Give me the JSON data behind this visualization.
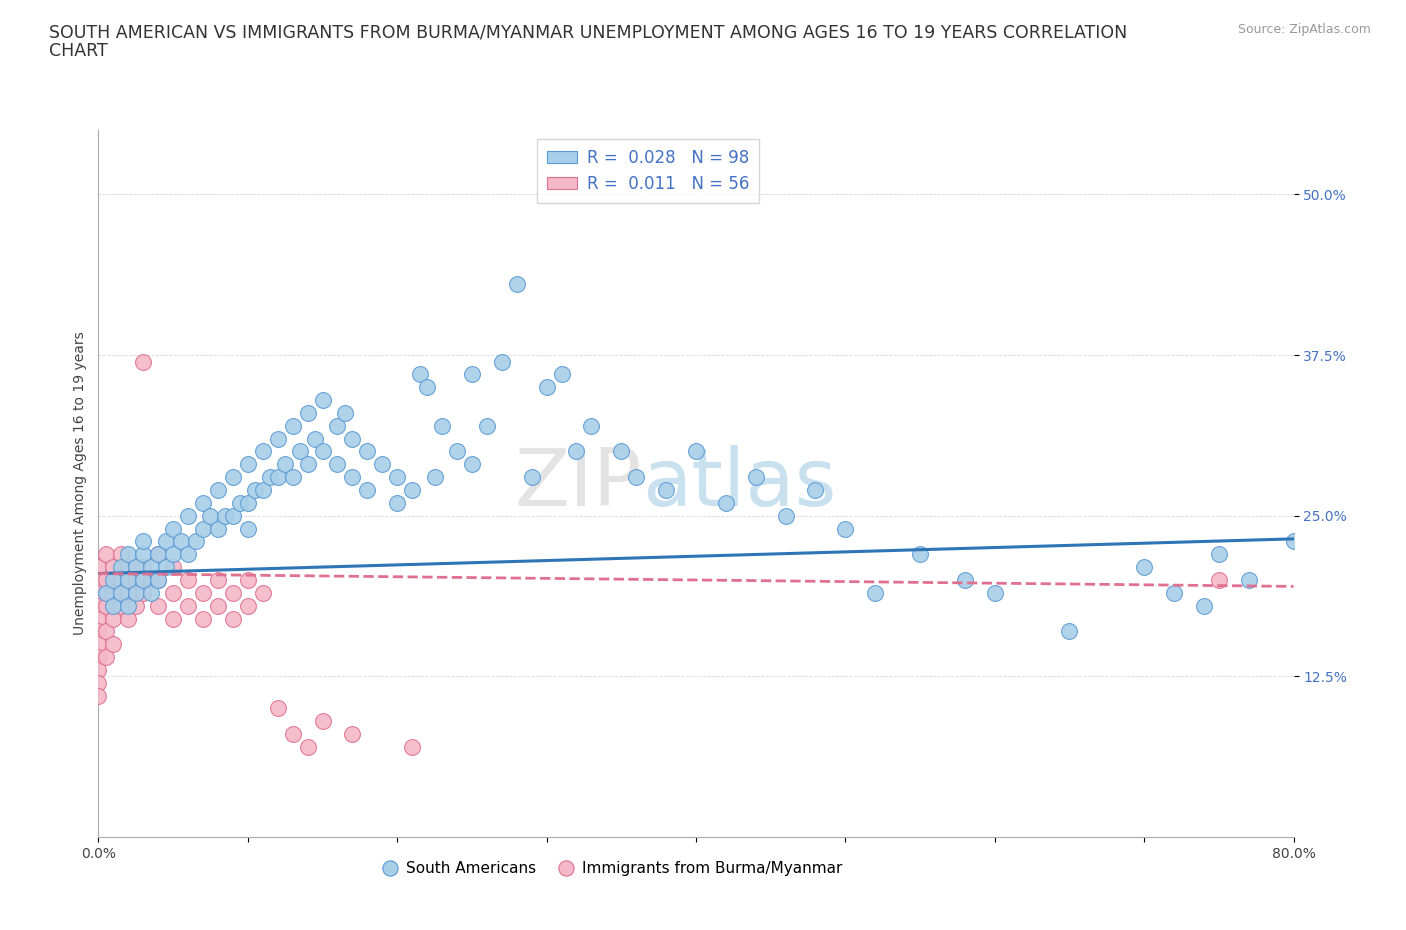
{
  "title_line1": "SOUTH AMERICAN VS IMMIGRANTS FROM BURMA/MYANMAR UNEMPLOYMENT AMONG AGES 16 TO 19 YEARS CORRELATION",
  "title_line2": "CHART",
  "source_text": "Source: ZipAtlas.com",
  "ylabel": "Unemployment Among Ages 16 to 19 years",
  "xlim": [
    0.0,
    0.8
  ],
  "ylim": [
    0.0,
    0.55
  ],
  "watermark_zip": "ZIP",
  "watermark_atlas": "atlas",
  "blue_color": "#a8cfe8",
  "blue_edge_color": "#5b9bd5",
  "pink_color": "#f4b8c8",
  "pink_edge_color": "#e07090",
  "blue_line_color": "#2e75b6",
  "pink_line_color": "#e07090",
  "legend_text1": "R =  0.028   N = 98",
  "legend_text2": "R =  0.011   N = 56",
  "legend_color": "#4472c4",
  "ytick_color": "#4472c4",
  "title_fontsize": 12.5,
  "source_fontsize": 9,
  "axis_label_fontsize": 10,
  "tick_fontsize": 10,
  "legend_fontsize": 12,
  "sa_x": [
    0.005,
    0.01,
    0.01,
    0.015,
    0.015,
    0.02,
    0.02,
    0.02,
    0.025,
    0.025,
    0.03,
    0.03,
    0.03,
    0.035,
    0.035,
    0.04,
    0.04,
    0.045,
    0.045,
    0.05,
    0.05,
    0.055,
    0.06,
    0.06,
    0.065,
    0.07,
    0.07,
    0.075,
    0.08,
    0.08,
    0.085,
    0.09,
    0.09,
    0.095,
    0.1,
    0.1,
    0.1,
    0.105,
    0.11,
    0.11,
    0.115,
    0.12,
    0.12,
    0.125,
    0.13,
    0.13,
    0.135,
    0.14,
    0.14,
    0.145,
    0.15,
    0.15,
    0.16,
    0.16,
    0.165,
    0.17,
    0.17,
    0.18,
    0.18,
    0.19,
    0.2,
    0.2,
    0.21,
    0.215,
    0.22,
    0.225,
    0.23,
    0.24,
    0.25,
    0.25,
    0.26,
    0.27,
    0.28,
    0.29,
    0.3,
    0.31,
    0.32,
    0.33,
    0.35,
    0.36,
    0.38,
    0.4,
    0.42,
    0.44,
    0.46,
    0.48,
    0.5,
    0.52,
    0.55,
    0.58,
    0.6,
    0.65,
    0.7,
    0.72,
    0.74,
    0.75,
    0.77,
    0.8
  ],
  "sa_y": [
    0.19,
    0.2,
    0.18,
    0.21,
    0.19,
    0.22,
    0.2,
    0.18,
    0.21,
    0.19,
    0.22,
    0.2,
    0.23,
    0.21,
    0.19,
    0.22,
    0.2,
    0.23,
    0.21,
    0.24,
    0.22,
    0.23,
    0.25,
    0.22,
    0.23,
    0.26,
    0.24,
    0.25,
    0.27,
    0.24,
    0.25,
    0.28,
    0.25,
    0.26,
    0.29,
    0.26,
    0.24,
    0.27,
    0.3,
    0.27,
    0.28,
    0.31,
    0.28,
    0.29,
    0.32,
    0.28,
    0.3,
    0.33,
    0.29,
    0.31,
    0.34,
    0.3,
    0.32,
    0.29,
    0.33,
    0.31,
    0.28,
    0.3,
    0.27,
    0.29,
    0.26,
    0.28,
    0.27,
    0.36,
    0.35,
    0.28,
    0.32,
    0.3,
    0.36,
    0.29,
    0.32,
    0.37,
    0.43,
    0.28,
    0.35,
    0.36,
    0.3,
    0.32,
    0.3,
    0.28,
    0.27,
    0.3,
    0.26,
    0.28,
    0.25,
    0.27,
    0.24,
    0.19,
    0.22,
    0.2,
    0.19,
    0.16,
    0.21,
    0.19,
    0.18,
    0.22,
    0.2,
    0.23
  ],
  "bm_x": [
    0.0,
    0.0,
    0.0,
    0.0,
    0.0,
    0.0,
    0.0,
    0.0,
    0.0,
    0.0,
    0.0,
    0.005,
    0.005,
    0.005,
    0.005,
    0.005,
    0.01,
    0.01,
    0.01,
    0.01,
    0.015,
    0.015,
    0.015,
    0.02,
    0.02,
    0.02,
    0.025,
    0.025,
    0.03,
    0.03,
    0.03,
    0.035,
    0.04,
    0.04,
    0.04,
    0.05,
    0.05,
    0.05,
    0.06,
    0.06,
    0.07,
    0.07,
    0.08,
    0.08,
    0.09,
    0.09,
    0.1,
    0.1,
    0.11,
    0.12,
    0.13,
    0.14,
    0.15,
    0.17,
    0.21,
    0.75
  ],
  "bm_y": [
    0.21,
    0.2,
    0.19,
    0.18,
    0.17,
    0.16,
    0.15,
    0.14,
    0.13,
    0.12,
    0.11,
    0.22,
    0.2,
    0.18,
    0.16,
    0.14,
    0.21,
    0.19,
    0.17,
    0.15,
    0.22,
    0.2,
    0.18,
    0.21,
    0.19,
    0.17,
    0.2,
    0.18,
    0.37,
    0.21,
    0.19,
    0.2,
    0.22,
    0.2,
    0.18,
    0.21,
    0.19,
    0.17,
    0.2,
    0.18,
    0.19,
    0.17,
    0.2,
    0.18,
    0.19,
    0.17,
    0.2,
    0.18,
    0.19,
    0.1,
    0.08,
    0.07,
    0.09,
    0.08,
    0.07,
    0.2
  ]
}
